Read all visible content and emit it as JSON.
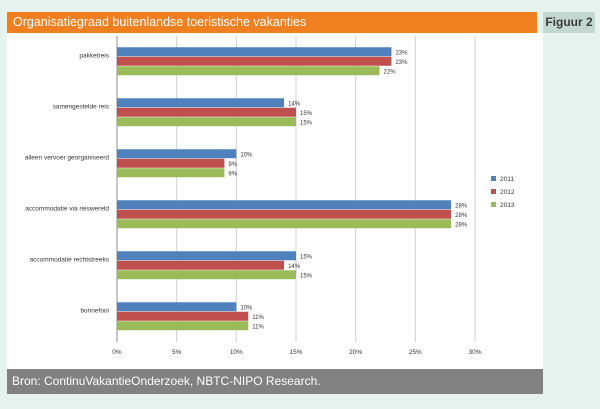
{
  "header": {
    "title": "Organisatiegraad buitenlandse toeristische vakanties",
    "figure_label": "Figuur 2"
  },
  "footer": {
    "source": "Bron: ContinuVakantieOnderzoek, NBTC-NIPO Research."
  },
  "colors": {
    "title_bar": "#f07f1f",
    "source_bar": "#818181",
    "figure_label_bg": "#c3d8d0"
  },
  "chart_data": {
    "type": "bar",
    "orientation": "horizontal",
    "categories": [
      "pakketreis",
      "samengestelde reis",
      "alleen vervoer georganiseerd",
      "accommodatie via reiswereld",
      "accommodatie rechtstreeks",
      "bonnefooi"
    ],
    "series": [
      {
        "name": "2011",
        "color": "#4f81bd",
        "values": [
          23,
          14,
          10,
          28,
          15,
          10
        ]
      },
      {
        "name": "2012",
        "color": "#c0504d",
        "values": [
          23,
          15,
          9,
          28,
          14,
          11
        ]
      },
      {
        "name": "2013",
        "color": "#9bbb59",
        "values": [
          22,
          15,
          9,
          28,
          15,
          11
        ]
      }
    ],
    "xlim": [
      0,
      30
    ],
    "xticks": [
      "0%",
      "5%",
      "10%",
      "15%",
      "20%",
      "25%",
      "30%"
    ],
    "value_suffix": "%",
    "grid": true,
    "legend_position": "right"
  }
}
